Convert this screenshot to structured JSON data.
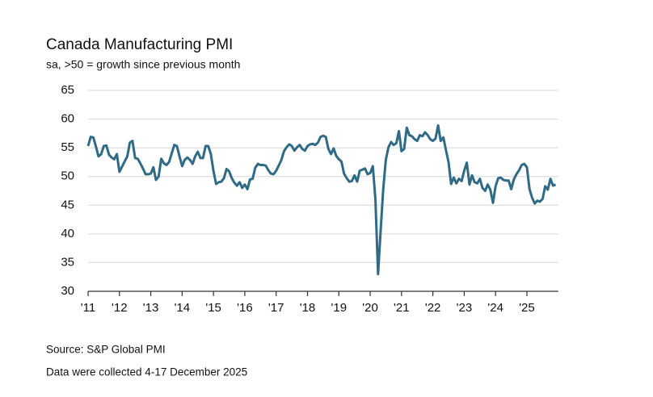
{
  "chart_data": {
    "type": "line",
    "title": "Canada Manufacturing PMI",
    "subtitle": "sa, >50 = growth since previous month",
    "source": "Source: S&P Global PMI",
    "note": "Data were collected 4-17 December 2025",
    "categories": [
      "'11",
      null,
      null,
      null,
      null,
      null,
      null,
      null,
      null,
      null,
      null,
      null,
      "'12",
      null,
      null,
      null,
      null,
      null,
      null,
      null,
      null,
      null,
      null,
      null,
      "'13",
      null,
      null,
      null,
      null,
      null,
      null,
      null,
      null,
      null,
      null,
      null,
      "'14",
      null,
      null,
      null,
      null,
      null,
      null,
      null,
      null,
      null,
      null,
      null,
      "'15",
      null,
      null,
      null,
      null,
      null,
      null,
      null,
      null,
      null,
      null,
      null,
      "'16",
      null,
      null,
      null,
      null,
      null,
      null,
      null,
      null,
      null,
      null,
      null,
      "'17",
      null,
      null,
      null,
      null,
      null,
      null,
      null,
      null,
      null,
      null,
      null,
      "'18",
      null,
      null,
      null,
      null,
      null,
      null,
      null,
      null,
      null,
      null,
      null,
      "'19",
      null,
      null,
      null,
      null,
      null,
      null,
      null,
      null,
      null,
      null,
      null,
      "'20",
      null,
      null,
      null,
      null,
      null,
      null,
      null,
      null,
      null,
      null,
      null,
      "'21",
      null,
      null,
      null,
      null,
      null,
      null,
      null,
      null,
      null,
      null,
      null,
      "'22",
      null,
      null,
      null,
      null,
      null,
      null,
      null,
      null,
      null,
      null,
      null,
      "'23",
      null,
      null,
      null,
      null,
      null,
      null,
      null,
      null,
      null,
      null,
      null,
      "'24",
      null,
      null,
      null,
      null,
      null,
      null,
      null,
      null,
      null,
      null,
      null,
      "'25",
      null,
      null,
      null,
      null,
      null,
      null,
      null,
      null,
      null,
      null,
      null
    ],
    "series": [
      {
        "color": "#2f6b84",
        "values": [
          55.3,
          56.9,
          56.8,
          55.2,
          53.5,
          53.9,
          55.3,
          55.4,
          53.8,
          53.3,
          53.0,
          53.9,
          50.8,
          51.7,
          52.6,
          53.5,
          55.9,
          56.2,
          53.2,
          53.1,
          52.3,
          51.4,
          50.4,
          50.4,
          50.5,
          51.6,
          49.4,
          50.0,
          53.1,
          52.3,
          52.0,
          52.5,
          54.0,
          55.5,
          55.3,
          53.5,
          51.8,
          52.9,
          53.3,
          52.9,
          52.2,
          53.5,
          54.3,
          53.2,
          53.2,
          55.3,
          55.3,
          53.9,
          51.0,
          48.7,
          49.0,
          49.1,
          49.7,
          51.3,
          50.9,
          49.7,
          48.9,
          48.4,
          49.0,
          48.0,
          48.6,
          47.8,
          49.5,
          49.6,
          51.5,
          52.2,
          52.0,
          52.0,
          51.9,
          51.1,
          50.5,
          50.4,
          51.0,
          51.9,
          52.9,
          54.4,
          55.1,
          55.6,
          55.3,
          54.5,
          55.1,
          55.5,
          54.8,
          54.5,
          55.3,
          55.6,
          55.7,
          55.5,
          55.9,
          56.9,
          57.1,
          56.9,
          54.8,
          53.9,
          54.9,
          53.6,
          53.0,
          52.6,
          50.5,
          49.7,
          49.1,
          49.2,
          50.2,
          49.1,
          51.0,
          51.2,
          51.4,
          50.4,
          50.6,
          51.8,
          46.1,
          33.0,
          40.6,
          47.8,
          52.9,
          55.1,
          56.0,
          55.5,
          55.8,
          57.9,
          54.4,
          54.8,
          58.5,
          57.2,
          57.0,
          56.5,
          56.2,
          57.2,
          57.0,
          57.7,
          57.2,
          56.5,
          56.2,
          56.6,
          58.9,
          56.2,
          56.8,
          54.6,
          52.5,
          48.7,
          49.8,
          48.8,
          49.6,
          49.2,
          51.0,
          52.4,
          48.6,
          50.2,
          49.0,
          48.8,
          49.6,
          48.0,
          47.5,
          48.6,
          47.7,
          45.4,
          48.3,
          49.7,
          49.8,
          49.4,
          49.3,
          49.3,
          47.8,
          49.5,
          50.4,
          51.1,
          52.0,
          52.2,
          51.6,
          47.8,
          46.3,
          45.3,
          45.8,
          45.6,
          46.1,
          48.3,
          47.7,
          49.6,
          48.4,
          48.6
        ]
      }
    ],
    "ylim": [
      30,
      65
    ],
    "yticks": [
      30,
      35,
      40,
      45,
      50,
      55,
      60,
      65
    ],
    "grid": true
  }
}
